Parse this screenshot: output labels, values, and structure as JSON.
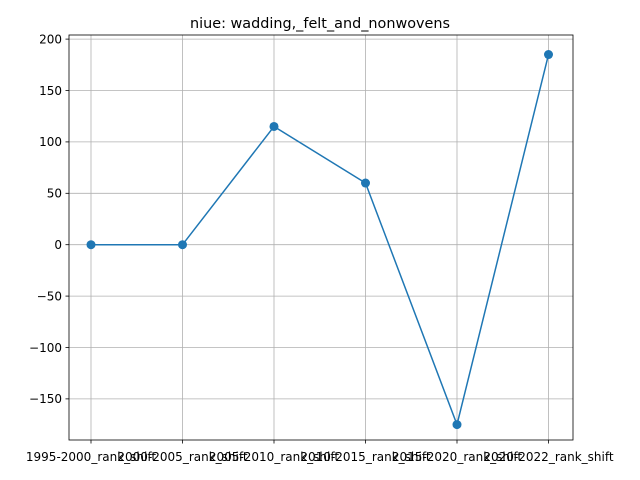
{
  "chart_data": {
    "type": "line",
    "title": "niue: wadding,_felt_and_nonwovens",
    "xlabel": "",
    "ylabel": "",
    "categories": [
      "1995-2000_rank_shift",
      "2000-2005_rank_shift",
      "2005-2010_rank_shift",
      "2010-2015_rank_shift",
      "2015-2020_rank_shift",
      "2020-2022_rank_shift"
    ],
    "values": [
      0,
      0,
      115,
      60,
      -175,
      185
    ],
    "ylim": [
      -190,
      204
    ],
    "yticks": [
      -150,
      -100,
      -50,
      0,
      50,
      100,
      150,
      200
    ],
    "ytick_labels": [
      "−150",
      "−100",
      "−50",
      "0",
      "50",
      "100",
      "150",
      "200"
    ],
    "grid": true,
    "marker": "circle",
    "series_color": "#1f77b4"
  }
}
